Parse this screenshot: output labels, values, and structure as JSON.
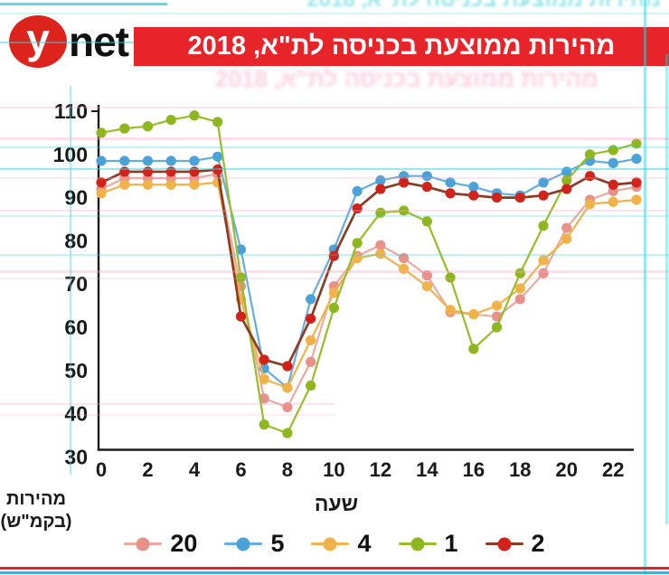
{
  "header": {
    "logo_y": "y",
    "logo_net": "net",
    "title": "מהירות ממוצעת בכניסה לת\"א, 2018",
    "banner_color": "#e72429"
  },
  "axis": {
    "x_title": "שעה",
    "y_title_line1": "מהירות",
    "y_title_line2": "(בקמ\"ש)"
  },
  "chart_data": {
    "type": "line",
    "title": "מהירות ממוצעת בכניסה לת\"א, 2018",
    "xlabel": "שעה",
    "ylabel": "מהירות (בקמ\"ש)",
    "x": [
      0,
      1,
      2,
      3,
      4,
      5,
      6,
      7,
      8,
      9,
      10,
      11,
      12,
      13,
      14,
      15,
      16,
      17,
      18,
      19,
      20,
      21,
      22,
      23
    ],
    "xticks": [
      0,
      2,
      4,
      6,
      8,
      10,
      12,
      14,
      16,
      18,
      20,
      22
    ],
    "yticks": [
      110,
      100,
      90,
      80,
      70,
      60,
      50,
      40,
      30
    ],
    "ylim": [
      30,
      110
    ],
    "grid": false,
    "legend_position": "bottom",
    "series": [
      {
        "name": "20",
        "marker_color": "#e8918b",
        "line_color": "#eba9a2",
        "values": [
          92,
          94.5,
          94.5,
          94.5,
          94.5,
          95.5,
          69.5,
          43.5,
          41.5,
          52,
          69.5,
          76.5,
          79,
          76,
          72,
          63.5,
          63,
          62.5,
          66.5,
          72.5,
          83,
          89.5,
          91.5,
          92.5
        ]
      },
      {
        "name": "5",
        "marker_color": "#4aa2d8",
        "line_color": "#64aede",
        "values": [
          98.5,
          98.5,
          98.5,
          98.5,
          98.5,
          99.5,
          78,
          50.5,
          46,
          66.5,
          78,
          91.5,
          94,
          95,
          95,
          93.5,
          92.5,
          91,
          90.5,
          93.5,
          96,
          98.5,
          98,
          99
        ]
      },
      {
        "name": "4",
        "marker_color": "#f1b24a",
        "line_color": "#f1b24a",
        "values": [
          91,
          93,
          93,
          93,
          93,
          93.5,
          66.5,
          48,
          46,
          57,
          68,
          76,
          77,
          73.5,
          69.5,
          64,
          63,
          65,
          69,
          75.5,
          80.5,
          88.5,
          89,
          89.5
        ]
      },
      {
        "name": "1",
        "marker_color": "#8eb71f",
        "line_color": "#97bd27",
        "values": [
          105,
          106,
          106.5,
          108,
          109,
          107.5,
          71.5,
          37.5,
          35.5,
          46.5,
          64.5,
          79.5,
          86.5,
          87,
          84.5,
          71.5,
          55,
          60,
          72.5,
          83.5,
          94,
          100,
          101,
          102.5
        ]
      },
      {
        "name": "2",
        "marker_color": "#d2231a",
        "line_color": "#8a3b24",
        "values": [
          93.5,
          96,
          96,
          96,
          96,
          96.5,
          62.5,
          52.5,
          51,
          62,
          76.5,
          87.5,
          92,
          93.5,
          92.5,
          91,
          90.5,
          90,
          90,
          90.5,
          92,
          95,
          93,
          93.5
        ]
      }
    ]
  }
}
